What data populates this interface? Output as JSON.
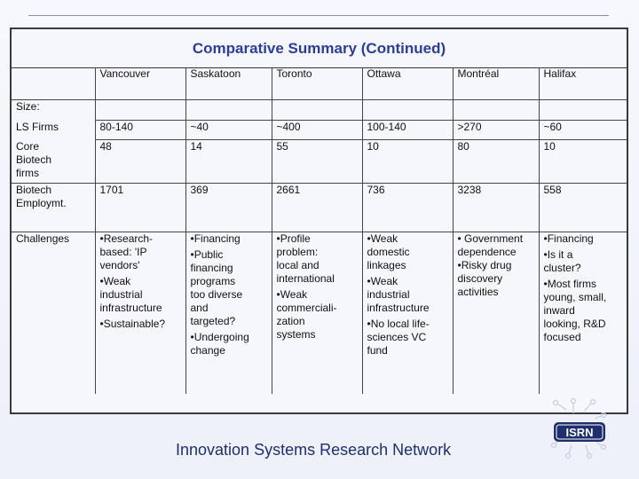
{
  "title": "Comparative Summary (Continued)",
  "columns": [
    "Vancouver",
    "Saskatoon",
    "Toronto",
    "Ottawa",
    "Montréal",
    "Halifax"
  ],
  "size_label": "Size:",
  "rows": {
    "ls_firms": {
      "label": "LS Firms",
      "values": [
        "80-140",
        "~40",
        "~400",
        "100-140",
        ">270",
        "~60"
      ]
    },
    "core_biotech": {
      "label_line1": "Core",
      "label_line2": "Biotech",
      "label_line3": "firms",
      "values": [
        "48",
        "14",
        "55",
        "10",
        "80",
        "10"
      ]
    },
    "biotech_emp": {
      "label_line1": "Biotech",
      "label_line2": "Employmt.",
      "values": [
        "1701",
        "369",
        "2661",
        "736",
        "3238",
        "558"
      ]
    },
    "challenges": {
      "label": "Challenges",
      "vancouver": [
        "•Research-",
        "based: 'IP",
        "vendors'",
        "•Weak",
        "industrial",
        "infrastructure",
        "•Sustainable?"
      ],
      "saskatoon": [
        "•Financing",
        "•Public",
        "financing",
        "programs",
        "too diverse",
        "and",
        "targeted?",
        "•Undergoing",
        "change"
      ],
      "toronto": [
        "•Profile",
        "problem:",
        "local and",
        "international",
        "•Weak",
        "commerciali-",
        "zation",
        "systems"
      ],
      "ottawa": [
        "•Weak",
        "domestic",
        "linkages",
        "•Weak",
        "industrial",
        "infrastructure",
        "•No local life-",
        "sciences VC",
        "fund"
      ],
      "montreal": [
        "• Government",
        "dependence",
        "•Risky drug",
        "discovery",
        "activities"
      ],
      "halifax": [
        "•Financing",
        "•Is it a",
        "cluster?",
        "•Most firms",
        "young, small,",
        "inward",
        "looking, R&D",
        "focused"
      ]
    }
  },
  "footer": "Innovation Systems Research Network",
  "logo_text": "ISRN",
  "colors": {
    "title": "#2b3f9a",
    "footer": "#1f2f6e",
    "logo": "#1f2f6e"
  }
}
